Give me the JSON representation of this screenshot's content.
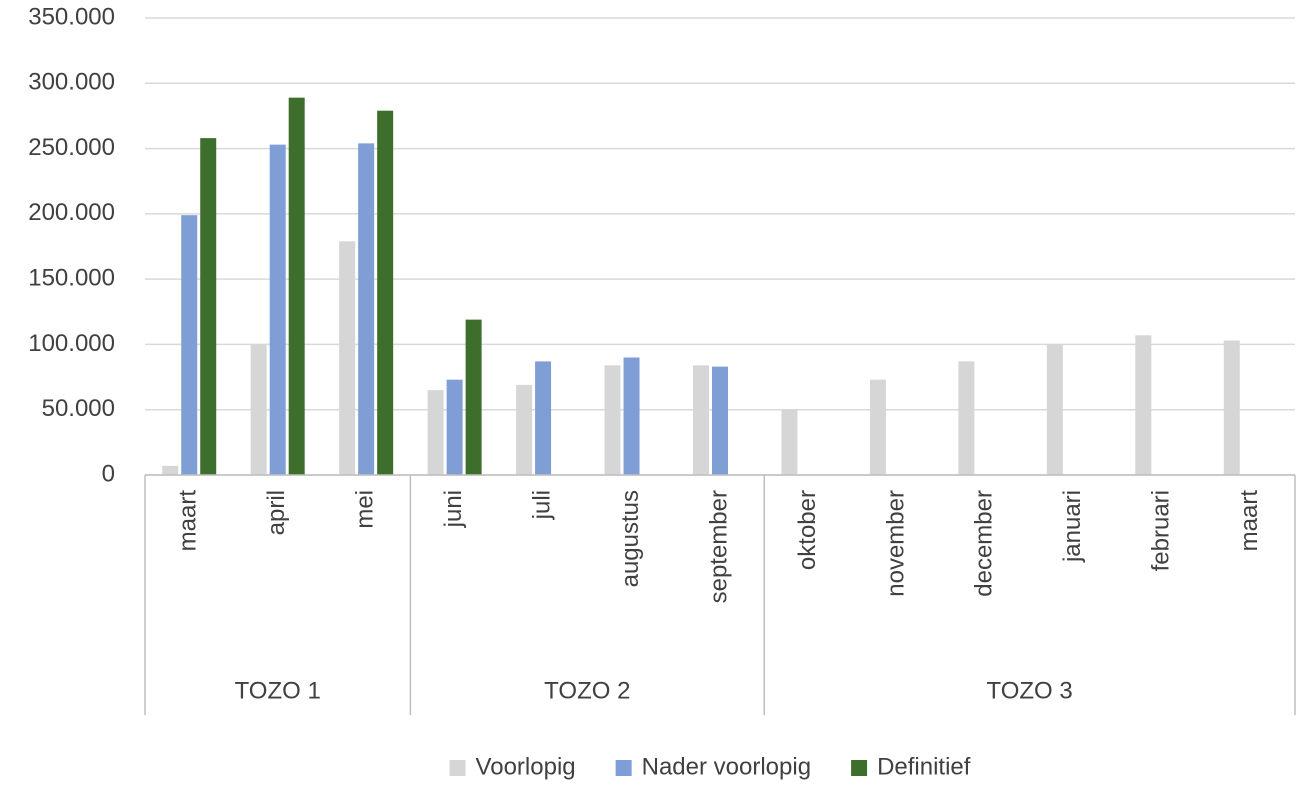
{
  "chart_data": {
    "type": "bar",
    "categories": [
      "maart",
      "april",
      "mei",
      "juni",
      "juli",
      "augustus",
      "september",
      "oktober",
      "november",
      "december",
      "januari",
      "februari",
      "maart"
    ],
    "groups": [
      {
        "label": "TOZO 1",
        "span": 3
      },
      {
        "label": "TOZO 2",
        "span": 4
      },
      {
        "label": "TOZO 3",
        "span": 6
      }
    ],
    "series": [
      {
        "name": "Voorlopig",
        "color": "#d6d6d6",
        "values": [
          7000,
          100000,
          179000,
          65000,
          69000,
          84000,
          84000,
          50000,
          73000,
          87000,
          100000,
          107000,
          103000
        ]
      },
      {
        "name": "Nader voorlopig",
        "color": "#809ed6",
        "values": [
          199000,
          253000,
          254000,
          73000,
          87000,
          90000,
          83000,
          null,
          null,
          null,
          null,
          null,
          null
        ]
      },
      {
        "name": "Definitief",
        "color": "#3d6e2b",
        "values": [
          258000,
          289000,
          279000,
          119000,
          null,
          null,
          null,
          null,
          null,
          null,
          null,
          null,
          null
        ]
      }
    ],
    "ylim": [
      0,
      350000
    ],
    "yticks": [
      0,
      {
        "value": 50000,
        "label": "50.000"
      },
      {
        "value": 100000,
        "label": "100.000"
      },
      {
        "value": 150000,
        "label": "150.000"
      },
      {
        "value": 200000,
        "label": "200.000"
      },
      {
        "value": 250000,
        "label": "250.000"
      },
      {
        "value": 300000,
        "label": "300.000"
      },
      {
        "value": 350000,
        "label": "350.000"
      }
    ],
    "grid": true,
    "legend": "bottom"
  }
}
